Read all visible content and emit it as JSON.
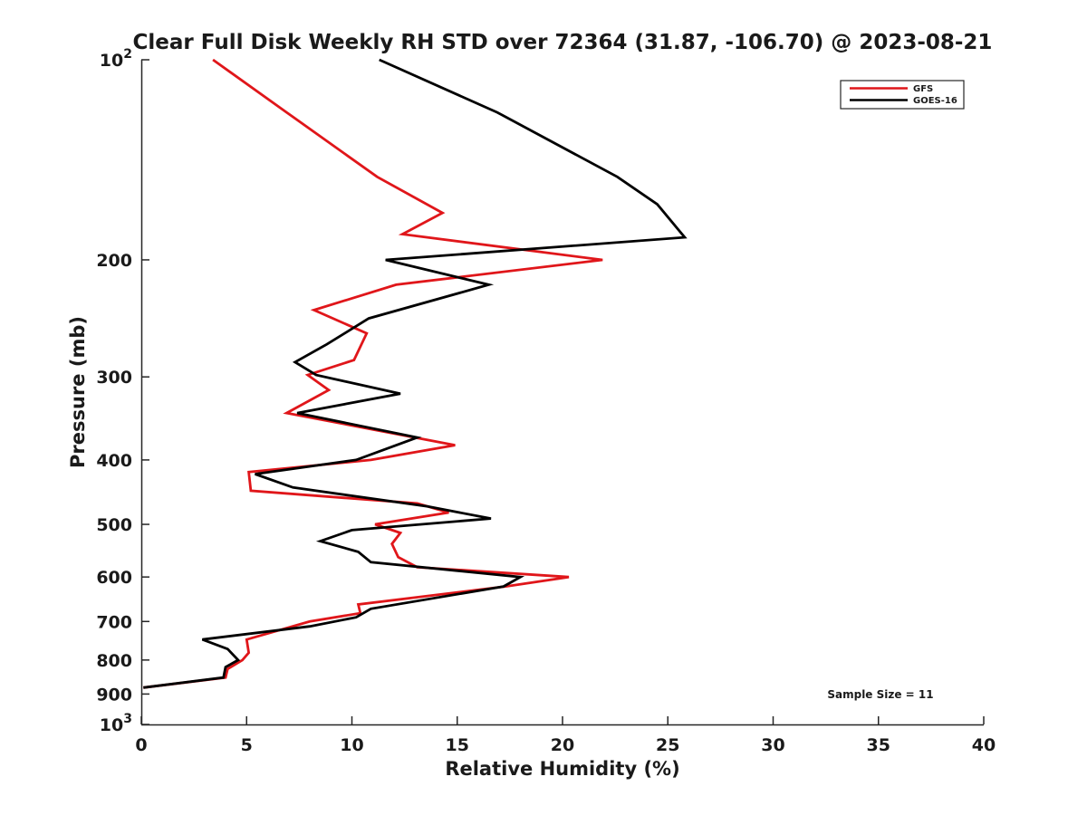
{
  "chart_data": {
    "type": "line",
    "title": "Clear Full Disk Weekly RH STD over 72364 (31.87, -106.70) @ 2023-08-21",
    "xlabel": "Relative Humidity (%)",
    "ylabel": "Pressure (mb)",
    "xlim": [
      0,
      40
    ],
    "ylim": [
      100,
      1000
    ],
    "yscale": "log",
    "y_reversed": true,
    "grid": false,
    "legend_position": "top-right",
    "annotation": "Sample Size = 11",
    "x_ticks": [
      "0",
      "5",
      "10",
      "15",
      "20",
      "25",
      "30",
      "35",
      "40"
    ],
    "x_tick_values": [
      0,
      5,
      10,
      15,
      20,
      25,
      30,
      35,
      40
    ],
    "y_ticks": [
      {
        "value": 100,
        "base": "10",
        "exp": "2"
      },
      {
        "value": 200,
        "label": "200"
      },
      {
        "value": 300,
        "label": "300"
      },
      {
        "value": 400,
        "label": "400"
      },
      {
        "value": 500,
        "label": "500"
      },
      {
        "value": 600,
        "label": "600"
      },
      {
        "value": 700,
        "label": "700"
      },
      {
        "value": 800,
        "label": "800"
      },
      {
        "value": 900,
        "label": "900"
      },
      {
        "value": 1000,
        "base": "10",
        "exp": "3"
      }
    ],
    "series": [
      {
        "name": "GFS",
        "color": "#e0161a",
        "points": [
          [
            3.4,
            100
          ],
          [
            6.9,
            120
          ],
          [
            11.2,
            150
          ],
          [
            14.3,
            170
          ],
          [
            12.4,
            183
          ],
          [
            21.9,
            200
          ],
          [
            12.1,
            218
          ],
          [
            8.2,
            238
          ],
          [
            10.7,
            258
          ],
          [
            10.1,
            283
          ],
          [
            7.9,
            298
          ],
          [
            8.9,
            314
          ],
          [
            6.9,
            340
          ],
          [
            14.9,
            380
          ],
          [
            10.9,
            400
          ],
          [
            5.1,
            417
          ],
          [
            5.2,
            445
          ],
          [
            13.1,
            465
          ],
          [
            14.6,
            480
          ],
          [
            11.1,
            500
          ],
          [
            12.3,
            515
          ],
          [
            11.9,
            535
          ],
          [
            12.2,
            560
          ],
          [
            13.1,
            580
          ],
          [
            20.3,
            600
          ],
          [
            17.3,
            620
          ],
          [
            10.3,
            660
          ],
          [
            10.4,
            680
          ],
          [
            8.0,
            700
          ],
          [
            5.0,
            745
          ],
          [
            5.1,
            780
          ],
          [
            4.8,
            800
          ],
          [
            4.1,
            825
          ],
          [
            4.0,
            850
          ],
          [
            0.1,
            880
          ]
        ]
      },
      {
        "name": "GOES-16",
        "color": "#000000",
        "points": [
          [
            11.3,
            100
          ],
          [
            16.9,
            120
          ],
          [
            22.6,
            150
          ],
          [
            24.5,
            165
          ],
          [
            25.8,
            185
          ],
          [
            11.6,
            200
          ],
          [
            16.5,
            218
          ],
          [
            10.8,
            245
          ],
          [
            8.8,
            268
          ],
          [
            7.3,
            285
          ],
          [
            8.3,
            298
          ],
          [
            12.3,
            318
          ],
          [
            7.4,
            340
          ],
          [
            13.1,
            370
          ],
          [
            10.2,
            400
          ],
          [
            5.4,
            420
          ],
          [
            7.2,
            440
          ],
          [
            13.6,
            470
          ],
          [
            16.6,
            490
          ],
          [
            10.0,
            510
          ],
          [
            8.5,
            530
          ],
          [
            10.3,
            550
          ],
          [
            10.9,
            570
          ],
          [
            18.0,
            600
          ],
          [
            17.2,
            620
          ],
          [
            10.9,
            670
          ],
          [
            10.2,
            690
          ],
          [
            8.0,
            712
          ],
          [
            2.9,
            745
          ],
          [
            4.1,
            770
          ],
          [
            4.6,
            800
          ],
          [
            4.0,
            820
          ],
          [
            3.9,
            850
          ],
          [
            0.1,
            880
          ]
        ]
      }
    ]
  }
}
